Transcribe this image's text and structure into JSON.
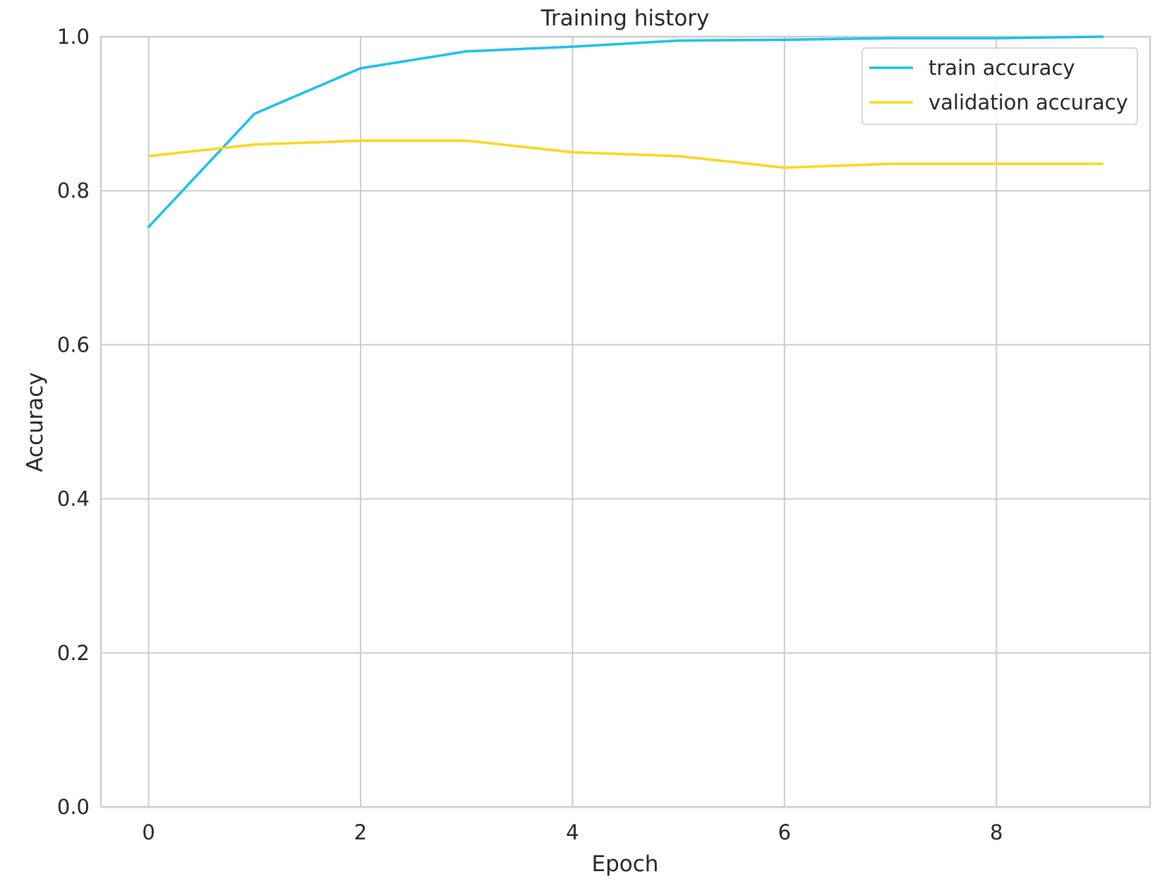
{
  "chart_data": {
    "type": "line",
    "title": "Training history",
    "xlabel": "Epoch",
    "ylabel": "Accuracy",
    "x": [
      0,
      1,
      2,
      3,
      4,
      5,
      6,
      7,
      8,
      9
    ],
    "xlim": [
      -0.45,
      9.45
    ],
    "ylim": [
      0.0,
      1.0
    ],
    "xticks": [
      0,
      2,
      4,
      6,
      8
    ],
    "yticks": [
      0.0,
      0.2,
      0.4,
      0.6,
      0.8,
      1.0
    ],
    "xtick_labels": [
      "0",
      "2",
      "4",
      "6",
      "8"
    ],
    "ytick_labels": [
      "0.0",
      "0.2",
      "0.4",
      "0.6",
      "0.8",
      "1.0"
    ],
    "grid": true,
    "legend_position": "top-right",
    "series": [
      {
        "name": "train accuracy",
        "color": "#1bbfef",
        "values": [
          0.753,
          0.9,
          0.959,
          0.981,
          0.987,
          0.995,
          0.996,
          0.998,
          0.998,
          1.0
        ]
      },
      {
        "name": "validation accuracy",
        "color": "#fcd71a",
        "values": [
          0.845,
          0.86,
          0.865,
          0.865,
          0.85,
          0.845,
          0.83,
          0.835,
          0.835,
          0.835
        ]
      }
    ]
  }
}
